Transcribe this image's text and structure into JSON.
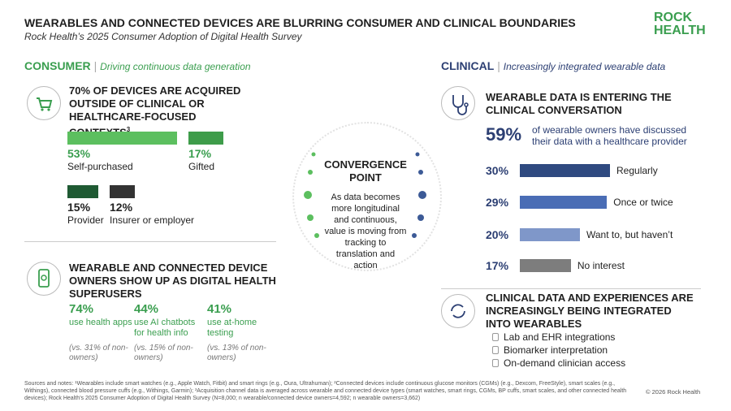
{
  "header": {
    "title": "WEARABLES AND CONNECTED DEVICES ARE BLURRING CONSUMER AND CLINICAL BOUNDARIES",
    "subtitle": "Rock Health’s 2025 Consumer Adoption of Digital Health Survey",
    "logo_top": "ROCK",
    "logo_bottom": "HEALTH"
  },
  "consumer": {
    "label": "CONSUMER",
    "tagline": "Driving continuous data generation",
    "acquisition": {
      "title": "70% OF DEVICES ARE ACQUIRED OUTSIDE OF CLINICAL OR HEALTHCARE-FOCUSED CONTEXTS",
      "note_ref": "3",
      "items": [
        {
          "value": 53,
          "label": "53%",
          "text": "Self-purchased"
        },
        {
          "value": 17,
          "label": "17%",
          "text": "Gifted"
        },
        {
          "value": 15,
          "label": "15%",
          "text": "Provider"
        },
        {
          "value": 12,
          "label": "12%",
          "text": "Insurer or employer"
        }
      ]
    },
    "superusers": {
      "title": "WEARABLE AND CONNECTED DEVICE OWNERS SHOW UP AS DIGITAL HEALTH SUPERUSERS",
      "stats": [
        {
          "value": "74%",
          "text": "use health apps",
          "comparison": "(vs. 31% of non-owners)"
        },
        {
          "value": "44%",
          "text": "use AI chatbots for health info",
          "comparison": "(vs. 15% of non-owners)"
        },
        {
          "value": "41%",
          "text": "use at-home testing",
          "comparison": "(vs. 13% of non-owners)"
        }
      ]
    }
  },
  "convergence": {
    "title": "CONVERGENCE POINT",
    "text": "As data becomes more longitudinal and continuous, value is moving from tracking to translation and action"
  },
  "clinical": {
    "label": "CLINICAL",
    "tagline": "Increasingly integrated wearable data",
    "conversation": {
      "title": "WEARABLE DATA IS ENTERING THE CLINICAL CONVERSATION",
      "highlight": "59%",
      "highlight_text": "of wearable owners have discussed their data with a healthcare provider",
      "items": [
        {
          "value": 30,
          "label": "30%",
          "text": "Regularly"
        },
        {
          "value": 29,
          "label": "29%",
          "text": "Once or twice"
        },
        {
          "value": 20,
          "label": "20%",
          "text": "Want to, but haven’t"
        },
        {
          "value": 17,
          "label": "17%",
          "text": "No interest"
        }
      ]
    },
    "integration": {
      "title": "CLINICAL DATA AND EXPERIENCES ARE INCREASINGLY BEING INTEGRATED INTO WEARABLES",
      "items": [
        "Lab and EHR integrations",
        "Biomarker interpretation",
        "On-demand clinician access"
      ]
    }
  },
  "footer": {
    "notes": "Sources and notes: ¹Wearables include smart watches (e.g., Apple Watch, Fitbit) and smart rings (e.g., Oura, Ultrahuman); ²Connected devices include continuous glucose monitors (CGMs) (e.g., Dexcom, FreeStyle), smart scales (e.g., Withings), connected blood pressure cuffs (e.g., Withings, Garmin); ³Acquisition channel data is averaged across wearable and connected device types (smart watches, smart rings, CGMs, BP cuffs, smart scales, and other connected health devices); Rock Health’s 2025 Consumer Adoption of Digital Health Survey (N=8,000; n wearable/connected device owners=4,592; n wearable owners=3,662)",
    "copyright": "© 2026 Rock Health"
  }
}
